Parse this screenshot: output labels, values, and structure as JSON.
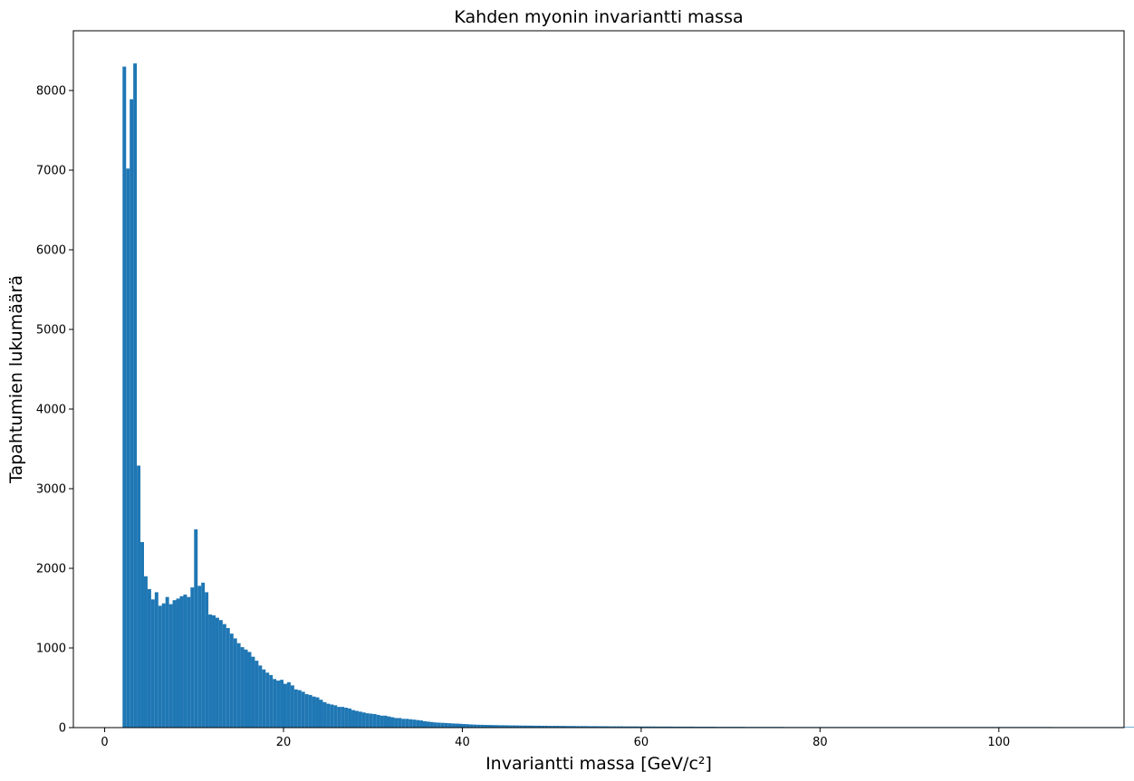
{
  "chart_data": {
    "type": "bar",
    "title": "Kahden myonin invariantti massa",
    "xlabel": "Invariantti massa [GeV/c²]",
    "ylabel": "Tapahtumien lukumäärä",
    "xlim": [
      -3.5,
      114
    ],
    "ylim": [
      0,
      8750
    ],
    "xticks": [
      0,
      20,
      40,
      60,
      80,
      100
    ],
    "yticks": [
      0,
      1000,
      2000,
      3000,
      4000,
      5000,
      6000,
      7000,
      8000
    ],
    "grid": false,
    "color": "#1f77b4",
    "series": [
      {
        "bin_start": 2.0,
        "bin_width": 0.4,
        "values": [
          8300,
          7020,
          7890,
          8340,
          3290,
          2330,
          1900,
          1740,
          1610,
          1700,
          1530,
          1560,
          1640,
          1550,
          1600,
          1620,
          1650,
          1670,
          1640,
          1760,
          2490,
          1780,
          1820,
          1700,
          1420,
          1410,
          1380,
          1350,
          1300,
          1250,
          1180,
          1120,
          1060,
          1010,
          980,
          950,
          890,
          840,
          780,
          730,
          690,
          660,
          610,
          590,
          600,
          550,
          570,
          530,
          480,
          470,
          450,
          420,
          410,
          390,
          380,
          350,
          320,
          300,
          290,
          280,
          260,
          260,
          250,
          240,
          220,
          210,
          200,
          190,
          180,
          175,
          170,
          160,
          150,
          150,
          140,
          130,
          120,
          120,
          110,
          110,
          105,
          100,
          95,
          90,
          80,
          75,
          70,
          65,
          62,
          60,
          58,
          55,
          52,
          50,
          48,
          45,
          43,
          40,
          38,
          36,
          35,
          34,
          33,
          32,
          31,
          30,
          30,
          29,
          28,
          28,
          27,
          26,
          26,
          25,
          25,
          24,
          24,
          23,
          23,
          22,
          22,
          22,
          21,
          21,
          20,
          20,
          20,
          19,
          19,
          19,
          18,
          18,
          18,
          17,
          17,
          17,
          16,
          16,
          16,
          16,
          15,
          15,
          15,
          15,
          14,
          14,
          14,
          14,
          14,
          13,
          13,
          13,
          13,
          13,
          12,
          12,
          12,
          12,
          12,
          12,
          11,
          11,
          11,
          11,
          11,
          11,
          10,
          10,
          10,
          10,
          10,
          10,
          10,
          10,
          9,
          9,
          9,
          9,
          9,
          9,
          9,
          9,
          9,
          9,
          9,
          8,
          8,
          8,
          8,
          8,
          8,
          8,
          8,
          8,
          8,
          8,
          8,
          8,
          8,
          8,
          8,
          8,
          8,
          8,
          8,
          8,
          8,
          8,
          8,
          8,
          8,
          8,
          8,
          8,
          8,
          8,
          8,
          8,
          8,
          8,
          8,
          8,
          8,
          8,
          8,
          8,
          8,
          8,
          8,
          8,
          8,
          8,
          8,
          8,
          8,
          8,
          8,
          8,
          8,
          8,
          8,
          8,
          8,
          8,
          8,
          8,
          8,
          8,
          8,
          8,
          8,
          8,
          8,
          8,
          8,
          8,
          8,
          8,
          8,
          8,
          7,
          7,
          7,
          7,
          7,
          7,
          7,
          7,
          7,
          7,
          7,
          7,
          7,
          7,
          7,
          7,
          7,
          7,
          7,
          7,
          7,
          7,
          7,
          7,
          7,
          7
        ]
      }
    ]
  }
}
